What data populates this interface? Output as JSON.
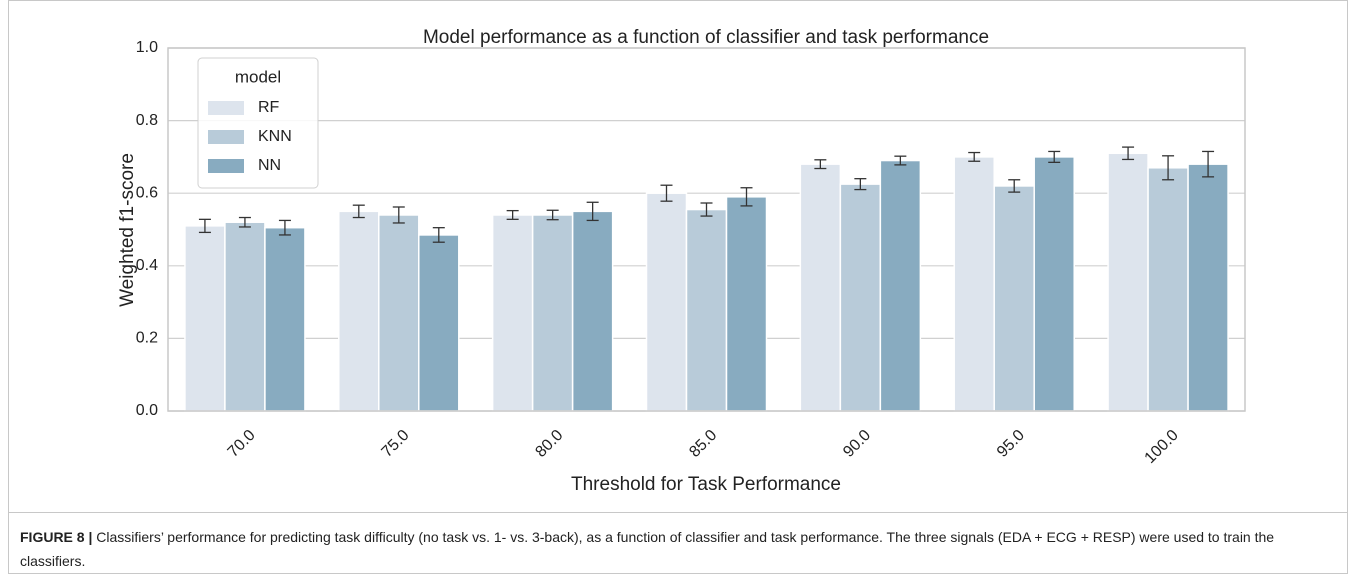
{
  "chart_data": {
    "type": "bar",
    "title": "Model performance as a function of classifier and task performance",
    "x_label": "Threshold for Task Performance",
    "y_label": "Weighted f1-score",
    "categories": [
      "70.0",
      "75.0",
      "80.0",
      "85.0",
      "90.0",
      "95.0",
      "100.0"
    ],
    "series": [
      {
        "name": "RF",
        "color": "#dde4ed",
        "values": [
          0.51,
          0.55,
          0.54,
          0.6,
          0.68,
          0.7,
          0.71
        ],
        "errors": [
          0.018,
          0.017,
          0.012,
          0.022,
          0.012,
          0.012,
          0.017
        ]
      },
      {
        "name": "KNN",
        "color": "#b8cbd9",
        "values": [
          0.52,
          0.54,
          0.54,
          0.555,
          0.625,
          0.62,
          0.67
        ],
        "errors": [
          0.013,
          0.022,
          0.013,
          0.018,
          0.015,
          0.017,
          0.033
        ]
      },
      {
        "name": "NN",
        "color": "#88abc0",
        "values": [
          0.505,
          0.485,
          0.55,
          0.59,
          0.69,
          0.7,
          0.68
        ],
        "errors": [
          0.02,
          0.02,
          0.025,
          0.025,
          0.012,
          0.015,
          0.035
        ]
      }
    ],
    "legend_title": "model",
    "legend_position": "upper-left",
    "ylim": [
      0,
      1
    ],
    "yticks": [
      {
        "value": 0,
        "label": "0.0"
      },
      {
        "value": 0.2,
        "label": "0.2"
      },
      {
        "value": 0.4,
        "label": "0.4"
      },
      {
        "value": 0.6,
        "label": "0.6"
      },
      {
        "value": 0.8,
        "label": "0.8"
      },
      {
        "value": 1,
        "label": "1.0"
      }
    ],
    "grid": true
  },
  "caption": {
    "label": "FIGURE 8 |",
    "text": "Classifiers’ performance for predicting task difficulty (no task vs. 1- vs. 3-back), as a function of classifier and task performance. The three signals (EDA + ECG + RESP) were used to train the classifiers."
  }
}
